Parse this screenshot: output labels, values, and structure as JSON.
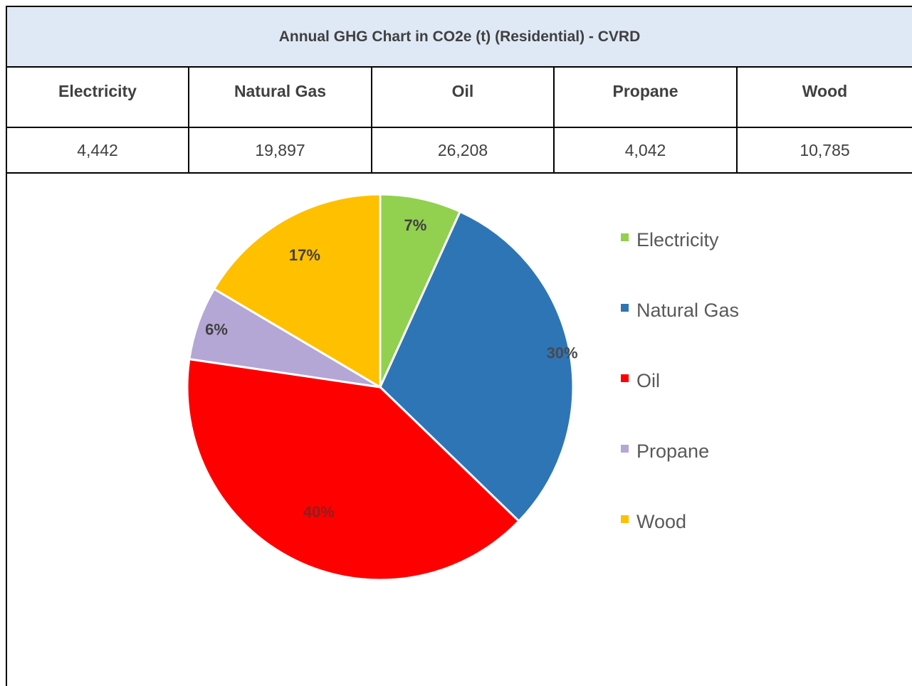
{
  "table": {
    "title": "Annual GHG Chart in CO2e (t) (Residential) - CVRD",
    "headers": [
      "Electricity",
      "Natural Gas",
      "Oil",
      "Propane",
      "Wood"
    ],
    "values": [
      "4,442",
      "19,897",
      "26,208",
      "4,042",
      "10,785"
    ]
  },
  "colors": {
    "title_bg": "#dfe9f6",
    "text": "#404040",
    "series": [
      "#92d050",
      "#2e75b6",
      "#ff0000",
      "#b4a7d6",
      "#ffc000"
    ]
  },
  "chart_data": {
    "type": "pie",
    "categories": [
      "Electricity",
      "Natural Gas",
      "Oil",
      "Propane",
      "Wood"
    ],
    "values": [
      4442,
      19897,
      26208,
      4042,
      10785
    ],
    "labels": [
      "7%",
      "30%",
      "40%",
      "6%",
      "17%"
    ],
    "start": "12 o'clock, clockwise",
    "legend": "right",
    "title": "",
    "xlabel": "",
    "ylabel": ""
  }
}
